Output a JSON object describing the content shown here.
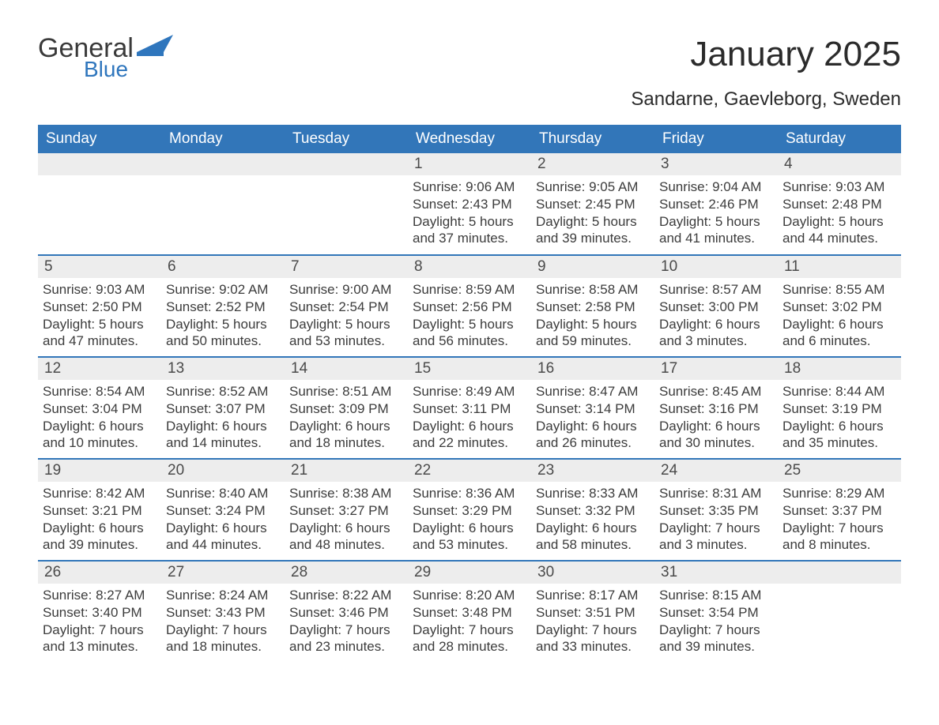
{
  "brand": {
    "word1": "General",
    "word2": "Blue",
    "accent": "#2f76bd"
  },
  "title": "January 2025",
  "subtitle": "Sandarne, Gaevleborg, Sweden",
  "colors": {
    "header_bg": "#3276b9",
    "header_text": "#ffffff",
    "daynum_bg": "#ededed",
    "text": "#3c3c3c",
    "rule": "#3276b9"
  },
  "calendar": {
    "type": "table",
    "columns": [
      "Sunday",
      "Monday",
      "Tuesday",
      "Wednesday",
      "Thursday",
      "Friday",
      "Saturday"
    ],
    "weeks": [
      [
        null,
        null,
        null,
        {
          "n": "1",
          "sunrise": "9:06 AM",
          "sunset": "2:43 PM",
          "dl1": "Daylight: 5 hours",
          "dl2": "and 37 minutes."
        },
        {
          "n": "2",
          "sunrise": "9:05 AM",
          "sunset": "2:45 PM",
          "dl1": "Daylight: 5 hours",
          "dl2": "and 39 minutes."
        },
        {
          "n": "3",
          "sunrise": "9:04 AM",
          "sunset": "2:46 PM",
          "dl1": "Daylight: 5 hours",
          "dl2": "and 41 minutes."
        },
        {
          "n": "4",
          "sunrise": "9:03 AM",
          "sunset": "2:48 PM",
          "dl1": "Daylight: 5 hours",
          "dl2": "and 44 minutes."
        }
      ],
      [
        {
          "n": "5",
          "sunrise": "9:03 AM",
          "sunset": "2:50 PM",
          "dl1": "Daylight: 5 hours",
          "dl2": "and 47 minutes."
        },
        {
          "n": "6",
          "sunrise": "9:02 AM",
          "sunset": "2:52 PM",
          "dl1": "Daylight: 5 hours",
          "dl2": "and 50 minutes."
        },
        {
          "n": "7",
          "sunrise": "9:00 AM",
          "sunset": "2:54 PM",
          "dl1": "Daylight: 5 hours",
          "dl2": "and 53 minutes."
        },
        {
          "n": "8",
          "sunrise": "8:59 AM",
          "sunset": "2:56 PM",
          "dl1": "Daylight: 5 hours",
          "dl2": "and 56 minutes."
        },
        {
          "n": "9",
          "sunrise": "8:58 AM",
          "sunset": "2:58 PM",
          "dl1": "Daylight: 5 hours",
          "dl2": "and 59 minutes."
        },
        {
          "n": "10",
          "sunrise": "8:57 AM",
          "sunset": "3:00 PM",
          "dl1": "Daylight: 6 hours",
          "dl2": "and 3 minutes."
        },
        {
          "n": "11",
          "sunrise": "8:55 AM",
          "sunset": "3:02 PM",
          "dl1": "Daylight: 6 hours",
          "dl2": "and 6 minutes."
        }
      ],
      [
        {
          "n": "12",
          "sunrise": "8:54 AM",
          "sunset": "3:04 PM",
          "dl1": "Daylight: 6 hours",
          "dl2": "and 10 minutes."
        },
        {
          "n": "13",
          "sunrise": "8:52 AM",
          "sunset": "3:07 PM",
          "dl1": "Daylight: 6 hours",
          "dl2": "and 14 minutes."
        },
        {
          "n": "14",
          "sunrise": "8:51 AM",
          "sunset": "3:09 PM",
          "dl1": "Daylight: 6 hours",
          "dl2": "and 18 minutes."
        },
        {
          "n": "15",
          "sunrise": "8:49 AM",
          "sunset": "3:11 PM",
          "dl1": "Daylight: 6 hours",
          "dl2": "and 22 minutes."
        },
        {
          "n": "16",
          "sunrise": "8:47 AM",
          "sunset": "3:14 PM",
          "dl1": "Daylight: 6 hours",
          "dl2": "and 26 minutes."
        },
        {
          "n": "17",
          "sunrise": "8:45 AM",
          "sunset": "3:16 PM",
          "dl1": "Daylight: 6 hours",
          "dl2": "and 30 minutes."
        },
        {
          "n": "18",
          "sunrise": "8:44 AM",
          "sunset": "3:19 PM",
          "dl1": "Daylight: 6 hours",
          "dl2": "and 35 minutes."
        }
      ],
      [
        {
          "n": "19",
          "sunrise": "8:42 AM",
          "sunset": "3:21 PM",
          "dl1": "Daylight: 6 hours",
          "dl2": "and 39 minutes."
        },
        {
          "n": "20",
          "sunrise": "8:40 AM",
          "sunset": "3:24 PM",
          "dl1": "Daylight: 6 hours",
          "dl2": "and 44 minutes."
        },
        {
          "n": "21",
          "sunrise": "8:38 AM",
          "sunset": "3:27 PM",
          "dl1": "Daylight: 6 hours",
          "dl2": "and 48 minutes."
        },
        {
          "n": "22",
          "sunrise": "8:36 AM",
          "sunset": "3:29 PM",
          "dl1": "Daylight: 6 hours",
          "dl2": "and 53 minutes."
        },
        {
          "n": "23",
          "sunrise": "8:33 AM",
          "sunset": "3:32 PM",
          "dl1": "Daylight: 6 hours",
          "dl2": "and 58 minutes."
        },
        {
          "n": "24",
          "sunrise": "8:31 AM",
          "sunset": "3:35 PM",
          "dl1": "Daylight: 7 hours",
          "dl2": "and 3 minutes."
        },
        {
          "n": "25",
          "sunrise": "8:29 AM",
          "sunset": "3:37 PM",
          "dl1": "Daylight: 7 hours",
          "dl2": "and 8 minutes."
        }
      ],
      [
        {
          "n": "26",
          "sunrise": "8:27 AM",
          "sunset": "3:40 PM",
          "dl1": "Daylight: 7 hours",
          "dl2": "and 13 minutes."
        },
        {
          "n": "27",
          "sunrise": "8:24 AM",
          "sunset": "3:43 PM",
          "dl1": "Daylight: 7 hours",
          "dl2": "and 18 minutes."
        },
        {
          "n": "28",
          "sunrise": "8:22 AM",
          "sunset": "3:46 PM",
          "dl1": "Daylight: 7 hours",
          "dl2": "and 23 minutes."
        },
        {
          "n": "29",
          "sunrise": "8:20 AM",
          "sunset": "3:48 PM",
          "dl1": "Daylight: 7 hours",
          "dl2": "and 28 minutes."
        },
        {
          "n": "30",
          "sunrise": "8:17 AM",
          "sunset": "3:51 PM",
          "dl1": "Daylight: 7 hours",
          "dl2": "and 33 minutes."
        },
        {
          "n": "31",
          "sunrise": "8:15 AM",
          "sunset": "3:54 PM",
          "dl1": "Daylight: 7 hours",
          "dl2": "and 39 minutes."
        },
        null
      ]
    ],
    "labels": {
      "sunrise": "Sunrise: ",
      "sunset": "Sunset: "
    }
  }
}
